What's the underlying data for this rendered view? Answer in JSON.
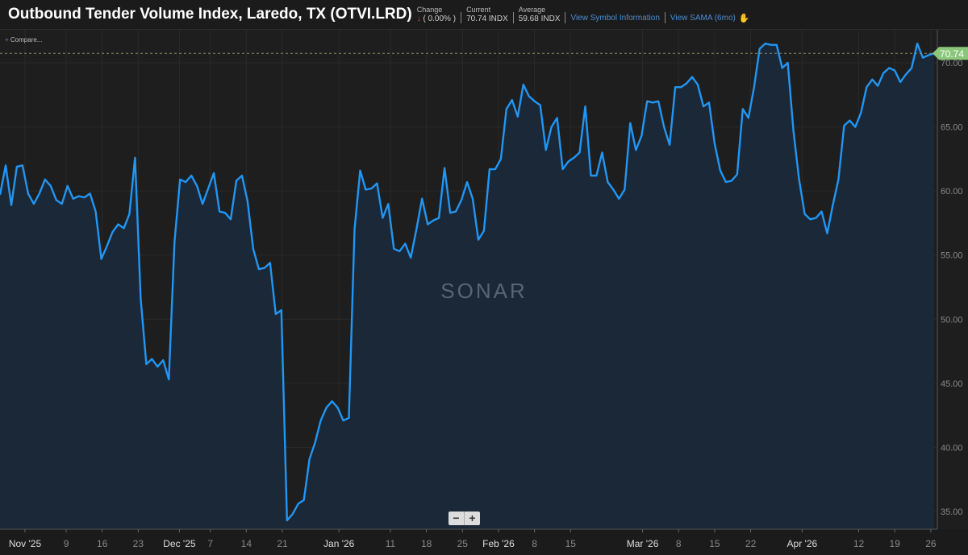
{
  "header": {
    "title": "Outbound Tender Volume Index, Laredo, TX (OTVI.LRD)",
    "change_label": "Change",
    "change_value": "( 0.00% )",
    "current_label": "Current",
    "current_value": "70.74 INDX",
    "average_label": "Average",
    "average_value": "59.68 INDX",
    "link_symbol": "View Symbol Information",
    "link_sama": "View SAMA (6mo)"
  },
  "compare": {
    "plus": "+",
    "label": "Compare..."
  },
  "watermark": "SONAR",
  "zoom": {
    "minus": "−",
    "plus": "+"
  },
  "colors": {
    "line": "#2196f3",
    "fill": "#1b2838",
    "tag": "#8bc77a"
  },
  "chart_data": {
    "type": "area",
    "title": "Outbound Tender Volume Index, Laredo, TX (OTVI.LRD)",
    "x_start": "2025-10-27",
    "x_end": "2025-04-25 (2026)",
    "x_unit": "days since 2025-11-01",
    "x_range": [
      -5,
      176.5
    ],
    "ylim": [
      33.5,
      72.5
    ],
    "yticks": [
      35,
      40,
      45,
      50,
      55,
      60,
      65,
      70
    ],
    "ytick_labels": [
      "35.00",
      "40.00",
      "45.00",
      "50.00",
      "55.00",
      "60.00",
      "65.00",
      "70.00"
    ],
    "xticks": [
      {
        "d": 0,
        "label": "Nov '25",
        "major": true
      },
      {
        "d": 8,
        "label": "9"
      },
      {
        "d": 15,
        "label": "16"
      },
      {
        "d": 22,
        "label": "23"
      },
      {
        "d": 30,
        "label": "Dec '25",
        "major": true
      },
      {
        "d": 36,
        "label": "7"
      },
      {
        "d": 43,
        "label": "14"
      },
      {
        "d": 50,
        "label": "21"
      },
      {
        "d": 61,
        "label": "Jan '26",
        "major": true
      },
      {
        "d": 71,
        "label": "11"
      },
      {
        "d": 78,
        "label": "18"
      },
      {
        "d": 85,
        "label": "25"
      },
      {
        "d": 92,
        "label": "Feb '26",
        "major": true
      },
      {
        "d": 99,
        "label": "8"
      },
      {
        "d": 106,
        "label": "15"
      },
      {
        "d": 120,
        "label": "Mar '26",
        "major": true
      },
      {
        "d": 127,
        "label": "8"
      },
      {
        "d": 134,
        "label": "15"
      },
      {
        "d": 141,
        "label": "22"
      },
      {
        "d": 151,
        "label": "Apr '26",
        "major": true
      },
      {
        "d": 162,
        "label": "12"
      },
      {
        "d": 169,
        "label": "19"
      },
      {
        "d": 176,
        "label": "26"
      }
    ],
    "current_value": "70.74",
    "values": [
      59.7,
      62,
      58.9,
      61.9,
      62,
      59.8,
      59,
      59.8,
      60.9,
      60.4,
      59.3,
      59,
      60.4,
      59.4,
      59.6,
      59.5,
      59.8,
      58.4,
      54.7,
      55.7,
      56.8,
      57.4,
      57.1,
      58.2,
      62.6,
      51.6,
      46.5,
      46.9,
      46.3,
      46.8,
      45.3,
      56,
      60.9,
      60.7,
      61.2,
      60.4,
      59,
      60.2,
      61.4,
      58.4,
      58.3,
      57.8,
      60.8,
      61.2,
      59.2,
      55.5,
      53.9,
      54,
      54.4,
      50.4,
      50.7,
      34.3,
      34.8,
      35.6,
      35.9,
      39.1,
      40.4,
      42.1,
      43.1,
      43.6,
      43.1,
      42.1,
      42.3,
      57,
      61.6,
      60.1,
      60.2,
      60.6,
      57.9,
      59,
      55.5,
      55.3,
      55.9,
      54.8,
      57,
      59.4,
      57.4,
      57.7,
      57.9,
      61.8,
      58.3,
      58.4,
      59.3,
      60.7,
      59.4,
      56.2,
      56.9,
      61.7,
      61.7,
      62.5,
      66.4,
      67.1,
      65.8,
      68.3,
      67.4,
      67,
      66.7,
      63.2,
      65,
      65.7,
      61.7,
      62.3,
      62.6,
      63,
      66.6,
      61.2,
      61.2,
      63,
      60.7,
      60.1,
      59.4,
      60.1,
      65.3,
      63.2,
      64.3,
      67,
      66.9,
      67,
      65,
      63.6,
      68.1,
      68.1,
      68.4,
      68.9,
      68.3,
      66.6,
      66.9,
      63.7,
      61.6,
      60.7,
      60.8,
      61.3,
      66.4,
      65.7,
      68.1,
      71.1,
      71.5,
      71.4,
      71.4,
      69.6,
      70,
      64.7,
      60.9,
      58.2,
      57.8,
      57.9,
      58.4,
      56.7,
      58.9,
      60.9,
      65.1,
      65.5,
      65,
      66.1,
      68.1,
      68.7,
      68.2,
      69.2,
      69.6,
      69.4,
      68.5,
      69.1,
      69.6,
      71.5,
      70.4,
      70.6,
      70.74
    ]
  }
}
